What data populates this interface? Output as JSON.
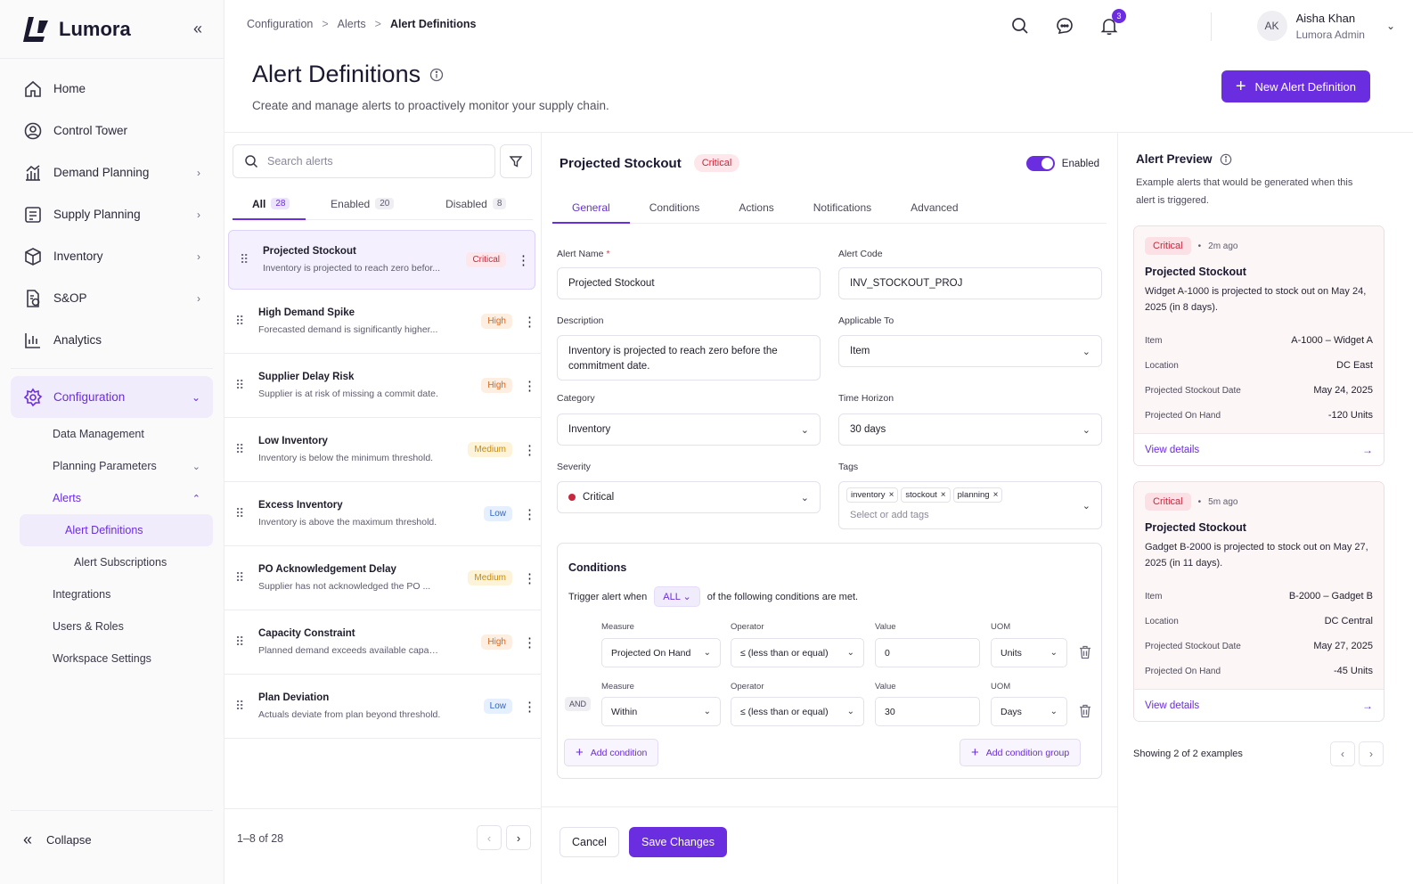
{
  "brand": {
    "name": "Lumora"
  },
  "nav": {
    "home": "Home",
    "control_tower": "Control Tower",
    "demand_planning": "Demand Planning",
    "supply_planning": "Supply Planning",
    "inventory": "Inventory",
    "sop": "S&OP",
    "analytics": "Analytics",
    "configuration": "Configuration",
    "data_management": "Data Management",
    "planning_parameters": "Planning Parameters",
    "alerts": "Alerts",
    "alert_definitions": "Alert Definitions",
    "alert_subscriptions": "Alert Subscriptions",
    "integrations": "Integrations",
    "users_roles": "Users & Roles",
    "workspace_settings": "Workspace Settings",
    "collapse": "Collapse"
  },
  "breadcrumb": {
    "level1": "Configuration",
    "level2": "Alerts",
    "current": "Alert Definitions",
    "sep": ">"
  },
  "header": {
    "notification_count": "3"
  },
  "user": {
    "initials": "AK",
    "name": "Aisha Khan",
    "role": "Lumora Admin"
  },
  "page": {
    "title": "Alert Definitions",
    "subtitle": "Create and manage alerts to proactively monitor your supply chain.",
    "new_button": "New Alert Definition"
  },
  "list": {
    "search_placeholder": "Search alerts",
    "tabs": [
      {
        "label": "All",
        "count": "28"
      },
      {
        "label": "Enabled",
        "count": "20"
      },
      {
        "label": "Disabled",
        "count": "8"
      }
    ],
    "items": [
      {
        "name": "Projected Stockout",
        "desc": "Inventory is projected to reach zero befor...",
        "severity": "Critical"
      },
      {
        "name": "High Demand Spike",
        "desc": "Forecasted demand is significantly higher...",
        "severity": "High"
      },
      {
        "name": "Supplier Delay Risk",
        "desc": "Supplier is at risk of missing a commit date.",
        "severity": "High"
      },
      {
        "name": "Low Inventory",
        "desc": "Inventory is below the minimum threshold.",
        "severity": "Medium"
      },
      {
        "name": "Excess Inventory",
        "desc": "Inventory is above the maximum threshold.",
        "severity": "Low"
      },
      {
        "name": "PO Acknowledgement Delay",
        "desc": "Supplier has not acknowledged the PO ...",
        "severity": "Medium"
      },
      {
        "name": "Capacity Constraint",
        "desc": "Planned demand exceeds available capacity.",
        "severity": "High"
      },
      {
        "name": "Plan Deviation",
        "desc": "Actuals deviate from plan beyond threshold.",
        "severity": "Low"
      }
    ],
    "pagination": "1–8 of 28"
  },
  "detail": {
    "title": "Projected Stockout",
    "badge": "Critical",
    "toggle_label": "Enabled",
    "tabs": [
      "General",
      "Conditions",
      "Actions",
      "Notifications",
      "Advanced"
    ],
    "fields": {
      "alert_name_label": "Alert Name",
      "alert_name_value": "Projected Stockout",
      "alert_code_label": "Alert Code",
      "alert_code_value": "INV_STOCKOUT_PROJ",
      "description_label": "Description",
      "description_value": "Inventory is projected to reach zero before the commitment date.",
      "applicable_label": "Applicable To",
      "applicable_value": "Item",
      "category_label": "Category",
      "category_value": "Inventory",
      "horizon_label": "Time Horizon",
      "horizon_value": "30 days",
      "severity_label": "Severity",
      "severity_value": "Critical",
      "tags_label": "Tags",
      "tags": [
        "inventory",
        "stockout",
        "planning"
      ],
      "tags_placeholder": "Select or add tags"
    },
    "conditions": {
      "title": "Conditions",
      "trigger_prefix": "Trigger alert when",
      "match": "ALL",
      "trigger_suffix": "of the following conditions are met.",
      "labels": {
        "measure": "Measure",
        "operator": "Operator",
        "value": "Value",
        "uom": "UOM"
      },
      "joiner": "AND",
      "rows": [
        {
          "measure": "Projected On Hand",
          "operator": "≤ (less than or equal)",
          "value": "0",
          "uom": "Units"
        },
        {
          "measure": "Within",
          "operator": "≤ (less than or equal)",
          "value": "30",
          "uom": "Days"
        }
      ],
      "add_condition": "Add condition",
      "add_group": "Add condition group"
    },
    "cancel": "Cancel",
    "save": "Save Changes"
  },
  "preview": {
    "title": "Alert Preview",
    "subtitle": "Example alerts that would be generated when this alert is triggered.",
    "cards": [
      {
        "badge": "Critical",
        "time": "2m ago",
        "title": "Projected Stockout",
        "text": "Widget A-1000 is projected to stock out on May 24, 2025 (in 8 days).",
        "rows": [
          {
            "k": "Item",
            "v": "A-1000 – Widget A"
          },
          {
            "k": "Location",
            "v": "DC East"
          },
          {
            "k": "Projected Stockout Date",
            "v": "May 24, 2025"
          },
          {
            "k": "Projected On Hand",
            "v": "-120 Units"
          }
        ],
        "link": "View details"
      },
      {
        "badge": "Critical",
        "time": "5m ago",
        "title": "Projected Stockout",
        "text": "Gadget B-2000 is projected to stock out on May 27, 2025 (in 11 days).",
        "rows": [
          {
            "k": "Item",
            "v": "B-2000 – Gadget B"
          },
          {
            "k": "Location",
            "v": "DC Central"
          },
          {
            "k": "Projected Stockout Date",
            "v": "May 27, 2025"
          },
          {
            "k": "Projected On Hand",
            "v": "-45 Units"
          }
        ],
        "link": "View details"
      }
    ],
    "count": "Showing 2 of 2 examples"
  }
}
